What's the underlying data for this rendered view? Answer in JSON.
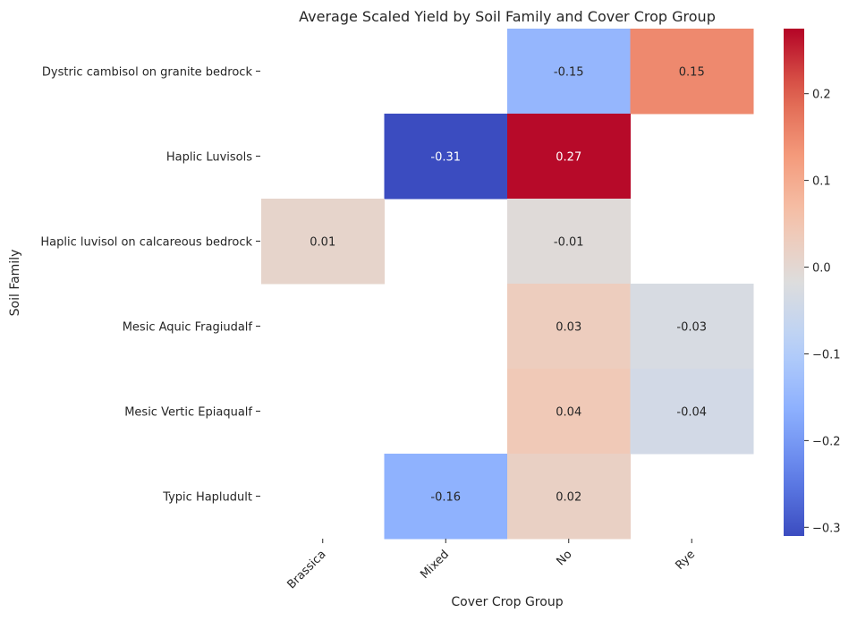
{
  "chart_data": {
    "type": "heatmap",
    "title": "Average Scaled Yield by Soil Family and Cover Crop Group",
    "xlabel": "Cover Crop Group",
    "ylabel": "Soil Family",
    "x_categories": [
      "Brassica",
      "Mixed",
      "No",
      "Rye"
    ],
    "y_categories": [
      "Dystric cambisol on granite bedrock",
      "Haplic Luvisols",
      "Haplic luvisol on calcareous bedrock",
      "Mesic Aquic Fragiudalf",
      "Mesic Vertic Epiaqualf",
      "Typic Hapludult"
    ],
    "values": [
      [
        null,
        null,
        -0.15,
        0.15
      ],
      [
        null,
        -0.31,
        0.27,
        null
      ],
      [
        0.01,
        null,
        -0.01,
        null
      ],
      [
        null,
        null,
        0.03,
        -0.03
      ],
      [
        null,
        null,
        0.04,
        -0.04
      ],
      [
        null,
        -0.16,
        0.02,
        null
      ]
    ],
    "value_labels": [
      [
        null,
        null,
        "-0.15",
        "0.15"
      ],
      [
        null,
        "-0.31",
        "0.27",
        null
      ],
      [
        "0.01",
        null,
        "-0.01",
        null
      ],
      [
        null,
        null,
        "0.03",
        "-0.03"
      ],
      [
        null,
        null,
        "0.04",
        "-0.04"
      ],
      [
        null,
        "-0.16",
        "0.02",
        null
      ]
    ],
    "colormap": "coolwarm",
    "color_range": [
      -0.31,
      0.275
    ],
    "colorbar": {
      "ticks": [
        -0.3,
        -0.2,
        -0.1,
        0.0,
        0.1,
        0.2
      ],
      "tick_labels": [
        "−0.3",
        "−0.2",
        "−0.1",
        "0.0",
        "0.1",
        "0.2"
      ]
    },
    "grid": false,
    "legend": "colorbar-right"
  }
}
